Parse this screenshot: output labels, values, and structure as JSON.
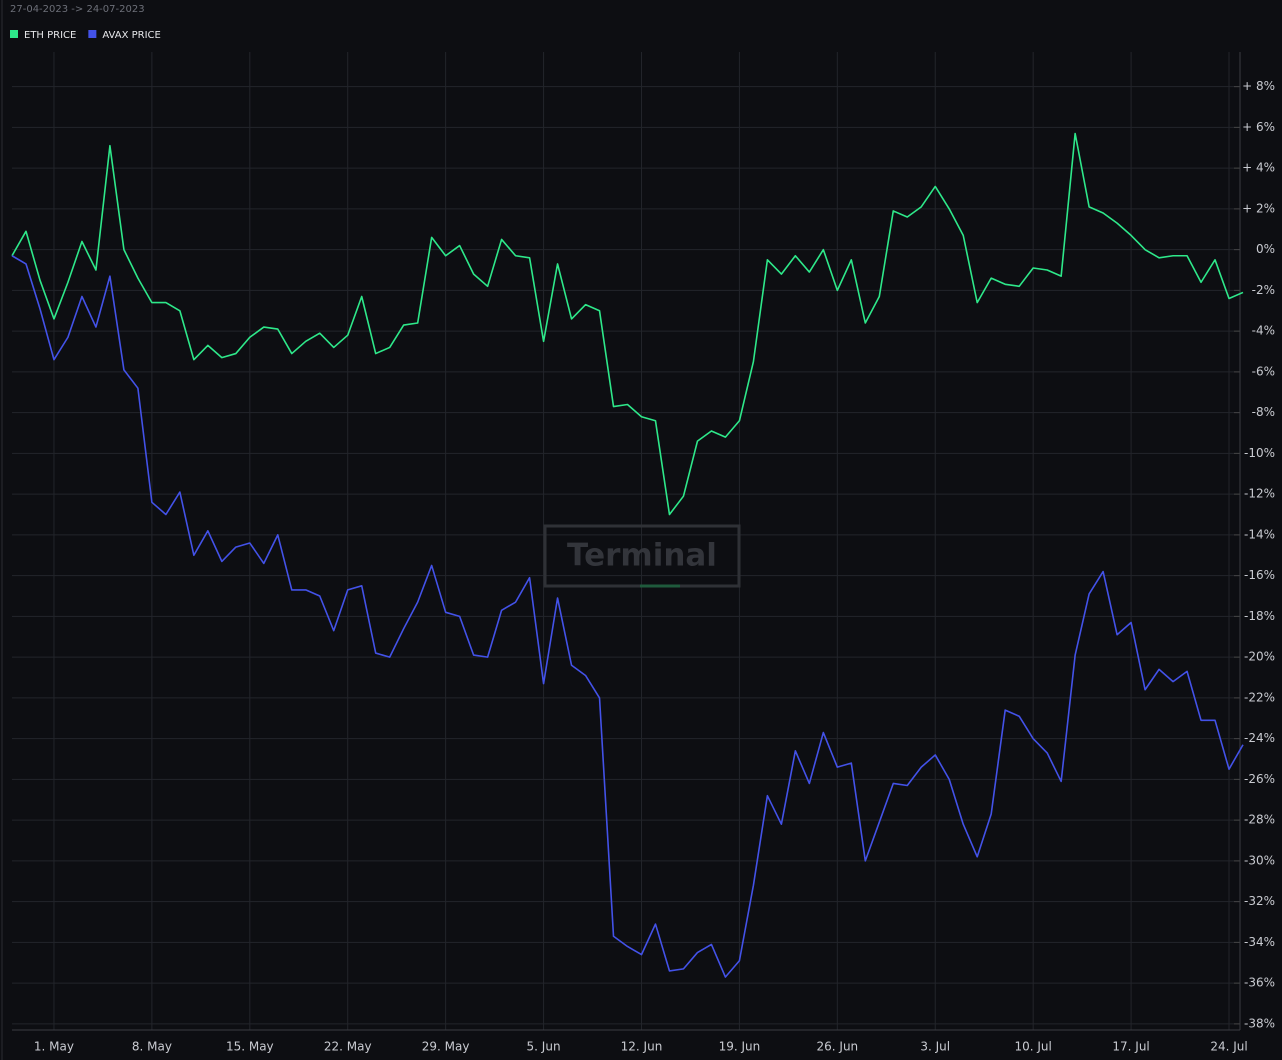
{
  "chart_data": {
    "type": "line",
    "subtitle": "27-04-2023 -> 24-07-2023",
    "watermark": "Terminal",
    "grid": true,
    "categories": [
      null,
      null,
      null,
      "1. May",
      null,
      null,
      null,
      null,
      null,
      null,
      "8. May",
      null,
      null,
      null,
      null,
      null,
      null,
      "15. May",
      null,
      null,
      null,
      null,
      null,
      null,
      "22. May",
      null,
      null,
      null,
      null,
      null,
      null,
      "29. May",
      null,
      null,
      null,
      null,
      null,
      null,
      "5. Jun",
      null,
      null,
      null,
      null,
      null,
      null,
      "12. Jun",
      null,
      null,
      null,
      null,
      null,
      null,
      "19. Jun",
      null,
      null,
      null,
      null,
      null,
      null,
      "26. Jun",
      null,
      null,
      null,
      null,
      null,
      null,
      "3. Jul",
      null,
      null,
      null,
      null,
      null,
      null,
      "10. Jul",
      null,
      null,
      null,
      null,
      null,
      null,
      "17. Jul",
      null,
      null,
      null,
      null,
      null,
      null,
      "24. Jul",
      null
    ],
    "series": [
      {
        "name": "ETH PRICE",
        "color": "#2ee88a",
        "values": [
          -0.3,
          0.9,
          -1.5,
          -3.4,
          -1.6,
          0.4,
          -1.0,
          5.1,
          0,
          -1.4,
          -2.6,
          -2.6,
          -3.0,
          -5.4,
          -4.7,
          -5.3,
          -5.1,
          -4.3,
          -3.8,
          -3.9,
          -5.1,
          -4.5,
          -4.1,
          -4.8,
          -4.2,
          -2.3,
          -5.1,
          -4.8,
          -3.7,
          -3.6,
          0.6,
          -0.3,
          0.2,
          -1.2,
          -1.8,
          0.5,
          -0.3,
          -0.4,
          -4.5,
          -0.7,
          -3.4,
          -2.7,
          -3.0,
          -7.7,
          -7.6,
          -8.2,
          -8.4,
          -13.0,
          -12.1,
          -9.4,
          -8.9,
          -9.2,
          -8.4,
          -5.5,
          -0.5,
          -1.2,
          -0.3,
          -1.1,
          0,
          -2.0,
          -0.5,
          -3.6,
          -2.3,
          1.9,
          1.6,
          2.1,
          3.1,
          2.0,
          0.7,
          -2.6,
          -1.4,
          -1.7,
          -1.8,
          -0.9,
          -1.0,
          -1.3,
          5.7,
          2.1,
          1.8,
          1.3,
          0.7,
          0,
          -0.4,
          -0.3,
          -0.3,
          -1.6,
          -0.5,
          -2.4,
          -2.1
        ]
      },
      {
        "name": "AVAX PRICE",
        "color": "#4352e8",
        "values": [
          -0.3,
          -0.7,
          -2.9,
          -5.4,
          -4.3,
          -2.3,
          -3.8,
          -1.3,
          -5.9,
          -6.8,
          -12.4,
          -13.0,
          -11.9,
          -15.0,
          -13.8,
          -15.3,
          -14.6,
          -14.4,
          -15.4,
          -14.0,
          -16.7,
          -16.7,
          -17.0,
          -18.7,
          -16.7,
          -16.5,
          -19.8,
          -20.0,
          -18.6,
          -17.3,
          -15.5,
          -17.8,
          -18.0,
          -19.9,
          -20.0,
          -17.7,
          -17.3,
          -16.1,
          -21.3,
          -17.1,
          -20.4,
          -20.9,
          -22.0,
          -33.7,
          -34.2,
          -34.6,
          -33.1,
          -35.4,
          -35.3,
          -34.5,
          -34.1,
          -35.7,
          -34.9,
          -31.2,
          -26.8,
          -28.2,
          -24.6,
          -26.2,
          -23.7,
          -25.4,
          -25.2,
          -30.0,
          -28.1,
          -26.2,
          -26.3,
          -25.4,
          -24.8,
          -26.0,
          -28.2,
          -29.8,
          -27.7,
          -22.6,
          -22.9,
          -24.0,
          -24.7,
          -26.1,
          -19.9,
          -16.9,
          -15.8,
          -18.9,
          -18.3,
          -21.6,
          -20.6,
          -21.2,
          -20.7,
          -23.1,
          -23.1,
          -25.5,
          -24.3
        ]
      }
    ],
    "ylim": [
      -38.3,
      9.7
    ],
    "yticks": [
      {
        "value": 8,
        "label": "+ 8%"
      },
      {
        "value": 6,
        "label": "+ 6%"
      },
      {
        "value": 4,
        "label": "+ 4%"
      },
      {
        "value": 2,
        "label": "+ 2%"
      },
      {
        "value": 0,
        "label": "0%"
      },
      {
        "value": -2,
        "label": "-2%"
      },
      {
        "value": -4,
        "label": "-4%"
      },
      {
        "value": -6,
        "label": "-6%"
      },
      {
        "value": -8,
        "label": "-8%"
      },
      {
        "value": -10,
        "label": "-10%"
      },
      {
        "value": -12,
        "label": "-12%"
      },
      {
        "value": -14,
        "label": "-14%"
      },
      {
        "value": -16,
        "label": "-16%"
      },
      {
        "value": -18,
        "label": "-18%"
      },
      {
        "value": -20,
        "label": "-20%"
      },
      {
        "value": -22,
        "label": "-22%"
      },
      {
        "value": -24,
        "label": "-24%"
      },
      {
        "value": -26,
        "label": "-26%"
      },
      {
        "value": -28,
        "label": "-28%"
      },
      {
        "value": -30,
        "label": "-30%"
      },
      {
        "value": -32,
        "label": "-32%"
      },
      {
        "value": -34,
        "label": "-34%"
      },
      {
        "value": -36,
        "label": "-36%"
      },
      {
        "value": -38,
        "label": "-38%"
      }
    ]
  }
}
